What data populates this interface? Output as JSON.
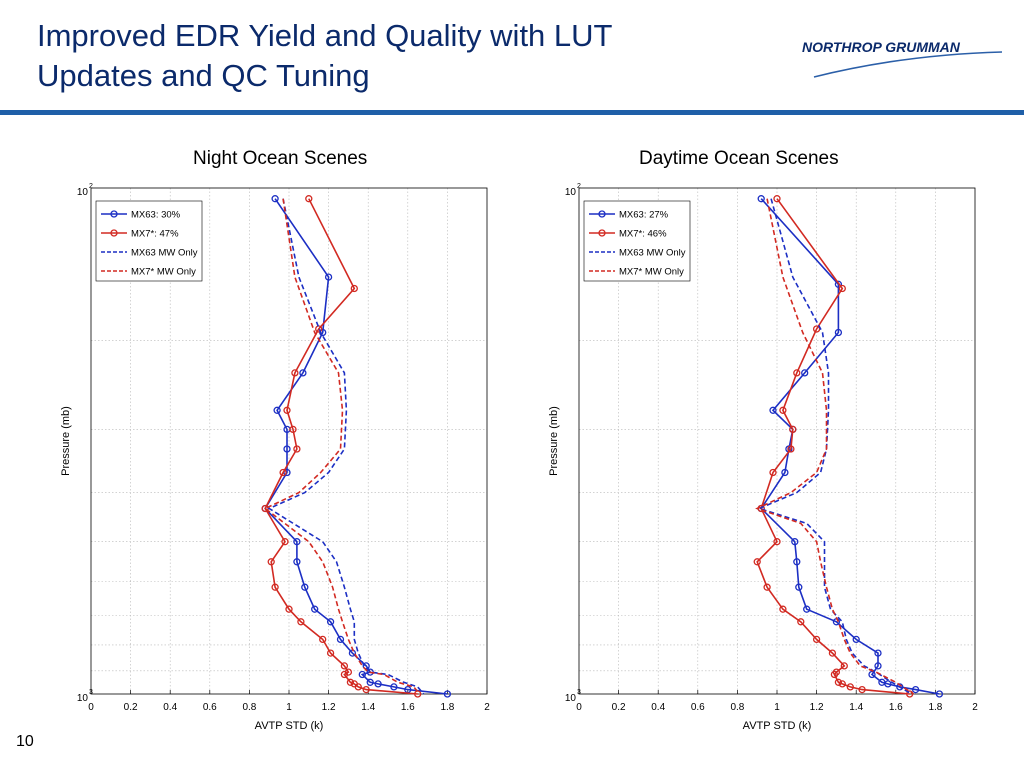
{
  "slide": {
    "title_line1": "Improved EDR Yield and Quality with LUT",
    "title_line2": "Updates and QC Tuning",
    "logo_text": "NORTHROP GRUMMAN",
    "page_number": "10"
  },
  "colors": {
    "title": "#0b2a6b",
    "rule": "#1f5fa8",
    "blue": "#1c2fc4",
    "red": "#d22a22"
  },
  "chart_data": [
    {
      "type": "line",
      "title": "Night Ocean Scenes",
      "xlabel": "AVTP STD (k)",
      "ylabel": "Pressure (mb)",
      "xlim": [
        0,
        2
      ],
      "ylim": [
        100,
        1000
      ],
      "yscale": "log",
      "xticks": [
        "0",
        "0.2",
        "0.4",
        "0.6",
        "0.8",
        "1",
        "1.2",
        "1.4",
        "1.6",
        "1.8",
        "2"
      ],
      "yticks": [
        {
          "base": "10",
          "exp": "2"
        },
        {
          "base": "10",
          "exp": "3"
        }
      ],
      "grid": true,
      "legend_position": "top-left",
      "series": [
        {
          "name": "MX63: 30%",
          "style": "solid-marker",
          "color": "blue",
          "points": [
            [
              0.93,
              105
            ],
            [
              1.2,
              150
            ],
            [
              1.17,
              193
            ],
            [
              1.07,
              232
            ],
            [
              0.94,
              275
            ],
            [
              0.99,
              300
            ],
            [
              0.99,
              328
            ],
            [
              0.99,
              365
            ],
            [
              0.88,
              430
            ],
            [
              1.04,
              500
            ],
            [
              1.04,
              548
            ],
            [
              1.08,
              615
            ],
            [
              1.13,
              680
            ],
            [
              1.21,
              720
            ],
            [
              1.26,
              780
            ],
            [
              1.32,
              830
            ],
            [
              1.39,
              880
            ],
            [
              1.41,
              905
            ],
            [
              1.37,
              915
            ],
            [
              1.41,
              948
            ],
            [
              1.45,
              955
            ],
            [
              1.53,
              968
            ],
            [
              1.6,
              980
            ],
            [
              1.8,
              1000
            ]
          ]
        },
        {
          "name": "MX7*: 47%",
          "style": "solid-marker",
          "color": "red",
          "points": [
            [
              1.1,
              105
            ],
            [
              1.33,
              158
            ],
            [
              1.15,
              190
            ],
            [
              1.03,
              232
            ],
            [
              0.99,
              275
            ],
            [
              1.02,
              300
            ],
            [
              1.04,
              328
            ],
            [
              0.97,
              365
            ],
            [
              0.88,
              430
            ],
            [
              0.98,
              500
            ],
            [
              0.91,
              548
            ],
            [
              0.93,
              615
            ],
            [
              1.0,
              680
            ],
            [
              1.06,
              720
            ],
            [
              1.17,
              780
            ],
            [
              1.21,
              830
            ],
            [
              1.28,
              880
            ],
            [
              1.3,
              905
            ],
            [
              1.28,
              915
            ],
            [
              1.31,
              948
            ],
            [
              1.33,
              955
            ],
            [
              1.35,
              968
            ],
            [
              1.39,
              980
            ],
            [
              1.65,
              1000
            ]
          ]
        },
        {
          "name": "MX63 MW Only",
          "style": "dashed",
          "color": "blue",
          "points": [
            [
              0.97,
              105
            ],
            [
              1.05,
              150
            ],
            [
              1.16,
              193
            ],
            [
              1.28,
              232
            ],
            [
              1.29,
              275
            ],
            [
              1.28,
              328
            ],
            [
              1.2,
              365
            ],
            [
              1.08,
              400
            ],
            [
              0.9,
              430
            ],
            [
              1.17,
              500
            ],
            [
              1.24,
              548
            ],
            [
              1.28,
              615
            ],
            [
              1.31,
              680
            ],
            [
              1.33,
              720
            ],
            [
              1.33,
              780
            ],
            [
              1.35,
              830
            ],
            [
              1.38,
              880
            ],
            [
              1.41,
              905
            ],
            [
              1.5,
              915
            ],
            [
              1.58,
              948
            ],
            [
              1.65,
              968
            ],
            [
              1.68,
              1000
            ]
          ]
        },
        {
          "name": "MX7* MW Only",
          "style": "dashed",
          "color": "red",
          "points": [
            [
              0.97,
              105
            ],
            [
              1.03,
              150
            ],
            [
              1.13,
              193
            ],
            [
              1.25,
              232
            ],
            [
              1.27,
              275
            ],
            [
              1.26,
              328
            ],
            [
              1.16,
              365
            ],
            [
              1.05,
              400
            ],
            [
              0.88,
              430
            ],
            [
              1.1,
              500
            ],
            [
              1.17,
              548
            ],
            [
              1.22,
              615
            ],
            [
              1.25,
              680
            ],
            [
              1.27,
              720
            ],
            [
              1.3,
              780
            ],
            [
              1.33,
              830
            ],
            [
              1.37,
              880
            ],
            [
              1.4,
              905
            ],
            [
              1.48,
              915
            ],
            [
              1.55,
              948
            ],
            [
              1.63,
              968
            ],
            [
              1.66,
              1000
            ]
          ]
        }
      ]
    },
    {
      "type": "line",
      "title": "Daytime Ocean Scenes",
      "xlabel": "AVTP STD (k)",
      "ylabel": "Pressure (mb)",
      "xlim": [
        0,
        2
      ],
      "ylim": [
        100,
        1000
      ],
      "yscale": "log",
      "xticks": [
        "0",
        "0.2",
        "0.4",
        "0.6",
        "0.8",
        "1",
        "1.2",
        "1.4",
        "1.6",
        "1.8",
        "2"
      ],
      "yticks": [
        {
          "base": "10",
          "exp": "2"
        },
        {
          "base": "10",
          "exp": "3"
        }
      ],
      "grid": true,
      "legend_position": "top-left",
      "series": [
        {
          "name": "MX63: 27%",
          "style": "solid-marker",
          "color": "blue",
          "points": [
            [
              0.92,
              105
            ],
            [
              1.31,
              155
            ],
            [
              1.31,
              193
            ],
            [
              1.14,
              232
            ],
            [
              0.98,
              275
            ],
            [
              1.08,
              300
            ],
            [
              1.06,
              328
            ],
            [
              1.04,
              365
            ],
            [
              0.92,
              430
            ],
            [
              1.09,
              500
            ],
            [
              1.1,
              548
            ],
            [
              1.11,
              615
            ],
            [
              1.15,
              680
            ],
            [
              1.3,
              720
            ],
            [
              1.4,
              780
            ],
            [
              1.51,
              830
            ],
            [
              1.51,
              880
            ],
            [
              1.48,
              915
            ],
            [
              1.53,
              948
            ],
            [
              1.56,
              955
            ],
            [
              1.62,
              968
            ],
            [
              1.7,
              980
            ],
            [
              1.82,
              1000
            ]
          ]
        },
        {
          "name": "MX7*: 46%",
          "style": "solid-marker",
          "color": "red",
          "points": [
            [
              1.0,
              105
            ],
            [
              1.33,
              158
            ],
            [
              1.2,
              190
            ],
            [
              1.1,
              232
            ],
            [
              1.03,
              275
            ],
            [
              1.08,
              300
            ],
            [
              1.07,
              328
            ],
            [
              0.98,
              365
            ],
            [
              0.92,
              430
            ],
            [
              1.0,
              500
            ],
            [
              0.9,
              548
            ],
            [
              0.95,
              615
            ],
            [
              1.03,
              680
            ],
            [
              1.12,
              720
            ],
            [
              1.2,
              780
            ],
            [
              1.28,
              830
            ],
            [
              1.34,
              880
            ],
            [
              1.3,
              905
            ],
            [
              1.29,
              915
            ],
            [
              1.31,
              948
            ],
            [
              1.33,
              955
            ],
            [
              1.37,
              968
            ],
            [
              1.43,
              980
            ],
            [
              1.67,
              1000
            ]
          ]
        },
        {
          "name": "MX63 MW Only",
          "style": "dashed",
          "color": "blue",
          "points": [
            [
              0.97,
              105
            ],
            [
              1.08,
              150
            ],
            [
              1.23,
              193
            ],
            [
              1.26,
              232
            ],
            [
              1.26,
              275
            ],
            [
              1.25,
              328
            ],
            [
              1.22,
              365
            ],
            [
              1.1,
              400
            ],
            [
              0.91,
              430
            ],
            [
              1.15,
              460
            ],
            [
              1.24,
              500
            ],
            [
              1.24,
              548
            ],
            [
              1.24,
              615
            ],
            [
              1.27,
              680
            ],
            [
              1.33,
              720
            ],
            [
              1.35,
              780
            ],
            [
              1.38,
              830
            ],
            [
              1.44,
              880
            ],
            [
              1.5,
              905
            ],
            [
              1.58,
              948
            ],
            [
              1.68,
              1000
            ]
          ]
        },
        {
          "name": "MX7* MW Only",
          "style": "dashed",
          "color": "red",
          "points": [
            [
              0.95,
              105
            ],
            [
              1.03,
              150
            ],
            [
              1.13,
              193
            ],
            [
              1.23,
              232
            ],
            [
              1.25,
              275
            ],
            [
              1.25,
              328
            ],
            [
              1.2,
              365
            ],
            [
              1.07,
              400
            ],
            [
              0.9,
              430
            ],
            [
              1.12,
              460
            ],
            [
              1.2,
              500
            ],
            [
              1.22,
              548
            ],
            [
              1.25,
              615
            ],
            [
              1.28,
              680
            ],
            [
              1.31,
              720
            ],
            [
              1.34,
              780
            ],
            [
              1.37,
              830
            ],
            [
              1.42,
              880
            ],
            [
              1.5,
              905
            ],
            [
              1.6,
              948
            ],
            [
              1.69,
              1000
            ]
          ]
        }
      ]
    }
  ]
}
